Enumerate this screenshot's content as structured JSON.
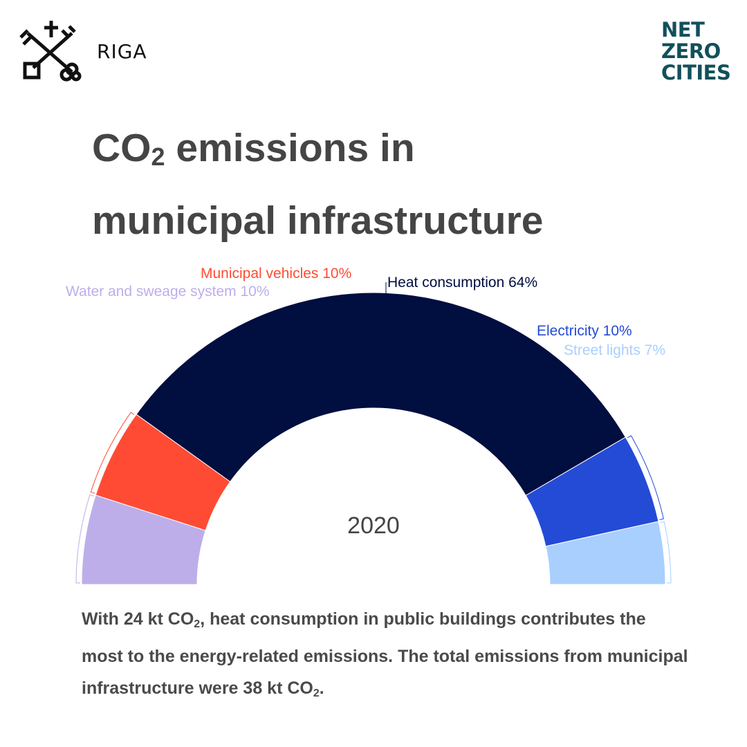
{
  "header": {
    "city": "RIGA",
    "partner_logo": [
      "NET",
      "ZERO",
      "CITIES"
    ]
  },
  "title": {
    "part1": "CO",
    "sub": "2",
    "part2": " emissions in",
    "line2": "municipal infrastructure"
  },
  "chart_data": {
    "type": "pie",
    "subtype": "semi-donut",
    "center_label": "2020",
    "segments": [
      {
        "name": "Water and sweage system",
        "value": 10,
        "label": "Water and sweage system 10%",
        "color": "#bdaeea"
      },
      {
        "name": "Municipal vehicles",
        "value": 10,
        "label": "Municipal vehicles 10%",
        "color": "#ff4b33"
      },
      {
        "name": "Heat consumption",
        "value": 64,
        "label": "Heat consumption 64%",
        "color": "#000e40"
      },
      {
        "name": "Electricity",
        "value": 10,
        "label": "Electricity 10%",
        "color": "#244bd6"
      },
      {
        "name": "Street lights",
        "value": 7,
        "label": "Street lights 7%",
        "color": "#a9cfff"
      }
    ],
    "unit": "%"
  },
  "caption": {
    "a": "With 24 kt CO",
    "a_sub": "2",
    "b": ", heat consumption in public buildings contributes the most to the energy-related emissions. The total emissions from municipal infrastructure were 38 kt CO",
    "b_sub": "2",
    "c": "."
  }
}
